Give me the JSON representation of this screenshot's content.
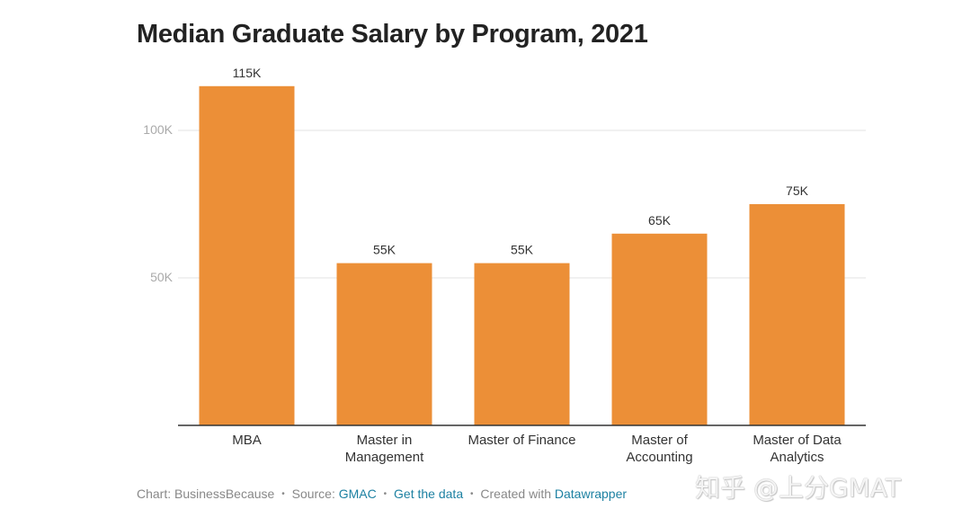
{
  "chart_data": {
    "type": "bar",
    "title": "Median Graduate Salary by Program, 2021",
    "categories": [
      [
        "MBA"
      ],
      [
        "Master in",
        "Management"
      ],
      [
        "Master of Finance"
      ],
      [
        "Master of",
        "Accounting"
      ],
      [
        "Master of Data",
        "Analytics"
      ]
    ],
    "values": [
      115000,
      55000,
      55000,
      65000,
      75000
    ],
    "value_labels": [
      "115K",
      "55K",
      "55K",
      "65K",
      "75K"
    ],
    "ylim": [
      0,
      125000
    ],
    "yticks": [
      50000,
      100000
    ],
    "ytick_labels": [
      "50K",
      "100K"
    ],
    "bar_color": "#ec8f37",
    "grid": true,
    "xlabel": "",
    "ylabel": ""
  },
  "footer": {
    "chart_credit": "Chart: BusinessBecause",
    "source_label": "Source:",
    "source_link": "GMAC",
    "get_data_link": "Get the data",
    "created_with": "Created with",
    "tool_link": "Datawrapper",
    "separator": "•"
  },
  "watermark": "知乎 @上分GMAT"
}
